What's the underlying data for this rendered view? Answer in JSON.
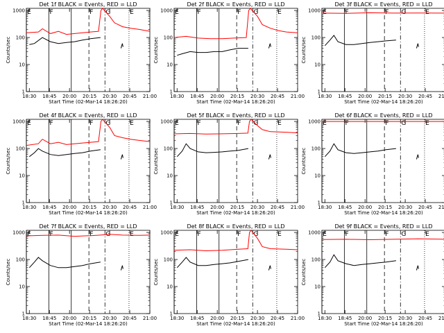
{
  "figure": {
    "ylabel": "Counts/sec",
    "xlabel": "Start Time (02-Mar-14 18:26:20)",
    "xticks": [
      "18:30",
      "18:45",
      "20:00",
      "20:15",
      "20:30",
      "20:45",
      "21:00"
    ],
    "yticks": [
      "1",
      "10",
      "100",
      "1000"
    ],
    "colors": {
      "events": "#000000",
      "lld": "#ff0000"
    }
  },
  "chart_data": [
    {
      "type": "line",
      "title": "Det 1f BLACK = Events, RED = LLD",
      "xlabel": "Start Time (02-Mar-14 18:26:20)",
      "ylabel": "Counts/sec",
      "y_scale": "log",
      "ylim": [
        1,
        1200
      ],
      "x_range_min": [
        3.7,
        154
      ],
      "xticks": [
        "18:30",
        "18:45",
        "20:00",
        "20:15",
        "20:30",
        "20:45",
        "21:00"
      ],
      "mode_markers": [
        "E",
        "F",
        "F",
        "G",
        "E"
      ],
      "series": [
        {
          "name": "Events",
          "x": [
            3.7,
            10,
            20,
            30,
            40,
            50,
            60,
            70,
            80,
            92.5
          ],
          "y": [
            55,
            60,
            100,
            70,
            60,
            65,
            70,
            80,
            90,
            100
          ]
        },
        {
          "name": "LLD",
          "x": [
            0,
            15,
            20,
            30,
            40,
            50,
            60,
            70,
            80,
            90,
            93,
            95,
            104,
            110,
            120,
            130,
            140,
            154
          ],
          "y": [
            150,
            160,
            210,
            140,
            170,
            130,
            140,
            150,
            160,
            170,
            1000,
            1200,
            600,
            350,
            250,
            220,
            200,
            170
          ]
        }
      ]
    },
    {
      "type": "line",
      "title": "Det 2f BLACK = Events, RED = LLD",
      "xlabel": "Start Time (02-Mar-14 18:26:20)",
      "ylabel": "Counts/sec",
      "y_scale": "log",
      "ylim": [
        1,
        1200
      ],
      "x_range_min": [
        3.7,
        154
      ],
      "xticks": [
        "18:30",
        "18:45",
        "20:00",
        "20:15",
        "20:30",
        "20:45",
        "21:00"
      ],
      "mode_markers": [
        "E",
        "F",
        "F",
        "G",
        "E"
      ],
      "series": [
        {
          "name": "Events",
          "x": [
            3.7,
            10,
            20,
            30,
            40,
            50,
            60,
            70,
            80,
            92.5
          ],
          "y": [
            22,
            25,
            30,
            28,
            28,
            30,
            30,
            35,
            40,
            40
          ]
        },
        {
          "name": "LLD",
          "x": [
            0,
            15,
            30,
            45,
            60,
            75,
            90,
            93,
            95,
            104,
            110,
            120,
            130,
            140,
            154
          ],
          "y": [
            100,
            110,
            95,
            90,
            90,
            95,
            100,
            1000,
            1200,
            600,
            300,
            220,
            180,
            160,
            150
          ]
        }
      ]
    },
    {
      "type": "line",
      "title": "Det 3f BLACK = Events, RED = LLD",
      "xlabel": "Start Time (02-Mar-14 18:26:20)",
      "ylabel": "Counts/sec",
      "y_scale": "log",
      "ylim": [
        1,
        1200
      ],
      "x_range_min": [
        3.7,
        154
      ],
      "xticks": [
        "18:30",
        "18:45",
        "20:00",
        "20:15",
        "20:30",
        "20:45",
        "21:00"
      ],
      "mode_markers": [
        "E",
        "F",
        "F",
        "G",
        "E"
      ],
      "series": [
        {
          "name": "Events",
          "x": [
            3.7,
            10,
            15,
            20,
            30,
            40,
            50,
            60,
            70,
            80,
            92.5
          ],
          "y": [
            50,
            80,
            120,
            70,
            55,
            55,
            60,
            65,
            70,
            75,
            80
          ]
        },
        {
          "name": "LLD",
          "x": [
            0,
            30,
            60,
            90,
            120,
            154
          ],
          "y": [
            800,
            780,
            820,
            800,
            810,
            800
          ]
        }
      ]
    },
    {
      "type": "line",
      "title": "Det 4f BLACK = Events, RED = LLD",
      "xlabel": "Start Time (02-Mar-14 18:26:20)",
      "ylabel": "Counts/sec",
      "y_scale": "log",
      "ylim": [
        1,
        1200
      ],
      "x_range_min": [
        3.7,
        154
      ],
      "xticks": [
        "18:30",
        "18:45",
        "20:00",
        "20:15",
        "20:30",
        "20:45",
        "21:00"
      ],
      "mode_markers": [
        "E",
        "F",
        "F",
        "G",
        "E"
      ],
      "series": [
        {
          "name": "Events",
          "x": [
            3.7,
            10,
            15,
            20,
            30,
            40,
            50,
            60,
            70,
            80,
            92.5
          ],
          "y": [
            50,
            70,
            100,
            80,
            60,
            55,
            60,
            65,
            70,
            80,
            90
          ]
        },
        {
          "name": "LLD",
          "x": [
            0,
            15,
            20,
            30,
            40,
            50,
            60,
            70,
            80,
            90,
            93,
            95,
            104,
            110,
            120,
            130,
            140,
            154
          ],
          "y": [
            130,
            150,
            220,
            150,
            170,
            140,
            150,
            160,
            170,
            180,
            1000,
            1200,
            600,
            300,
            250,
            220,
            200,
            180
          ]
        }
      ]
    },
    {
      "type": "line",
      "title": "Det 5f BLACK = Events, RED = LLD",
      "xlabel": "Start Time (02-Mar-14 18:26:20)",
      "ylabel": "Counts/sec",
      "y_scale": "log",
      "ylim": [
        1,
        1200
      ],
      "x_range_min": [
        3.7,
        154
      ],
      "xticks": [
        "18:30",
        "18:45",
        "20:00",
        "20:15",
        "20:30",
        "20:45",
        "21:00"
      ],
      "mode_markers": [
        "E",
        "F",
        "F",
        "G",
        "E"
      ],
      "series": [
        {
          "name": "Events",
          "x": [
            3.7,
            10,
            15,
            20,
            30,
            40,
            50,
            60,
            70,
            80,
            92.5
          ],
          "y": [
            50,
            80,
            150,
            100,
            75,
            70,
            72,
            75,
            80,
            85,
            100
          ]
        },
        {
          "name": "LLD",
          "x": [
            0,
            20,
            40,
            60,
            80,
            92,
            94,
            96,
            104,
            110,
            120,
            140,
            154
          ],
          "y": [
            350,
            360,
            340,
            350,
            360,
            370,
            1000,
            1200,
            700,
            500,
            420,
            400,
            380
          ]
        }
      ]
    },
    {
      "type": "line",
      "title": "Det 6f BLACK = Events, RED = LLD",
      "xlabel": "Start Time (02-Mar-14 18:26:20)",
      "ylabel": "Counts/sec",
      "y_scale": "log",
      "ylim": [
        1,
        1200
      ],
      "x_range_min": [
        3.7,
        154
      ],
      "xticks": [
        "18:30",
        "18:45",
        "20:00",
        "20:15",
        "20:30",
        "20:45",
        "21:00"
      ],
      "mode_markers": [
        "E",
        "F",
        "F",
        "G",
        "E"
      ],
      "series": [
        {
          "name": "Events",
          "x": [
            3.7,
            10,
            15,
            20,
            30,
            40,
            50,
            60,
            70,
            80,
            92.5
          ],
          "y": [
            50,
            80,
            150,
            90,
            70,
            65,
            70,
            75,
            80,
            90,
            100
          ]
        },
        {
          "name": "LLD",
          "x": [
            0,
            30,
            60,
            90,
            120,
            154
          ],
          "y": [
            1000,
            1000,
            1000,
            1000,
            1000,
            1000
          ]
        }
      ]
    },
    {
      "type": "line",
      "title": "Det 7f BLACK = Events, RED = LLD",
      "xlabel": "Start Time (02-Mar-14 18:26:20)",
      "ylabel": "Counts/sec",
      "y_scale": "log",
      "ylim": [
        1,
        1200
      ],
      "x_range_min": [
        3.7,
        154
      ],
      "xticks": [
        "18:30",
        "18:45",
        "20:00",
        "20:15",
        "20:30",
        "20:45",
        "21:00"
      ],
      "mode_markers": [
        "E",
        "F",
        "F",
        "G",
        "E"
      ],
      "series": [
        {
          "name": "Events",
          "x": [
            3.7,
            10,
            15,
            20,
            30,
            40,
            50,
            60,
            70,
            80,
            92.5
          ],
          "y": [
            50,
            80,
            120,
            90,
            60,
            50,
            50,
            55,
            60,
            70,
            80
          ]
        },
        {
          "name": "LLD",
          "x": [
            0,
            20,
            40,
            60,
            80,
            92,
            104,
            120,
            140,
            154
          ],
          "y": [
            750,
            780,
            800,
            720,
            760,
            800,
            850,
            800,
            780,
            800
          ]
        }
      ]
    },
    {
      "type": "line",
      "title": "Det 8f BLACK = Events, RED = LLD",
      "xlabel": "Start Time (02-Mar-14 18:26:20)",
      "ylabel": "Counts/sec",
      "y_scale": "log",
      "ylim": [
        1,
        1200
      ],
      "x_range_min": [
        3.7,
        154
      ],
      "xticks": [
        "18:30",
        "18:45",
        "20:00",
        "20:15",
        "20:30",
        "20:45",
        "21:00"
      ],
      "mode_markers": [
        "E",
        "F",
        "F",
        "G",
        "E"
      ],
      "series": [
        {
          "name": "Events",
          "x": [
            3.7,
            10,
            15,
            20,
            30,
            40,
            50,
            60,
            70,
            80,
            92.5
          ],
          "y": [
            50,
            80,
            120,
            80,
            60,
            60,
            65,
            70,
            75,
            85,
            100
          ]
        },
        {
          "name": "LLD",
          "x": [
            0,
            20,
            40,
            60,
            80,
            92,
            94,
            96,
            104,
            110,
            120,
            140,
            154
          ],
          "y": [
            220,
            230,
            210,
            220,
            240,
            250,
            1000,
            1200,
            600,
            300,
            250,
            240,
            230
          ]
        }
      ]
    },
    {
      "type": "line",
      "title": "Det 9f BLACK = Events, RED = LLD",
      "xlabel": "Start Time (02-Mar-14 18:26:20)",
      "ylabel": "Counts/sec",
      "y_scale": "log",
      "ylim": [
        1,
        1200
      ],
      "x_range_min": [
        3.7,
        154
      ],
      "xticks": [
        "18:30",
        "18:45",
        "20:00",
        "20:15",
        "20:30",
        "20:45",
        "21:00"
      ],
      "mode_markers": [
        "E",
        "F",
        "F",
        "G",
        "E"
      ],
      "series": [
        {
          "name": "Events",
          "x": [
            3.7,
            10,
            15,
            20,
            30,
            40,
            50,
            60,
            70,
            80,
            92.5
          ],
          "y": [
            50,
            80,
            150,
            90,
            70,
            60,
            65,
            70,
            75,
            80,
            90
          ]
        },
        {
          "name": "LLD",
          "x": [
            0,
            30,
            60,
            90,
            120,
            154
          ],
          "y": [
            550,
            560,
            540,
            560,
            580,
            560
          ]
        }
      ]
    }
  ]
}
